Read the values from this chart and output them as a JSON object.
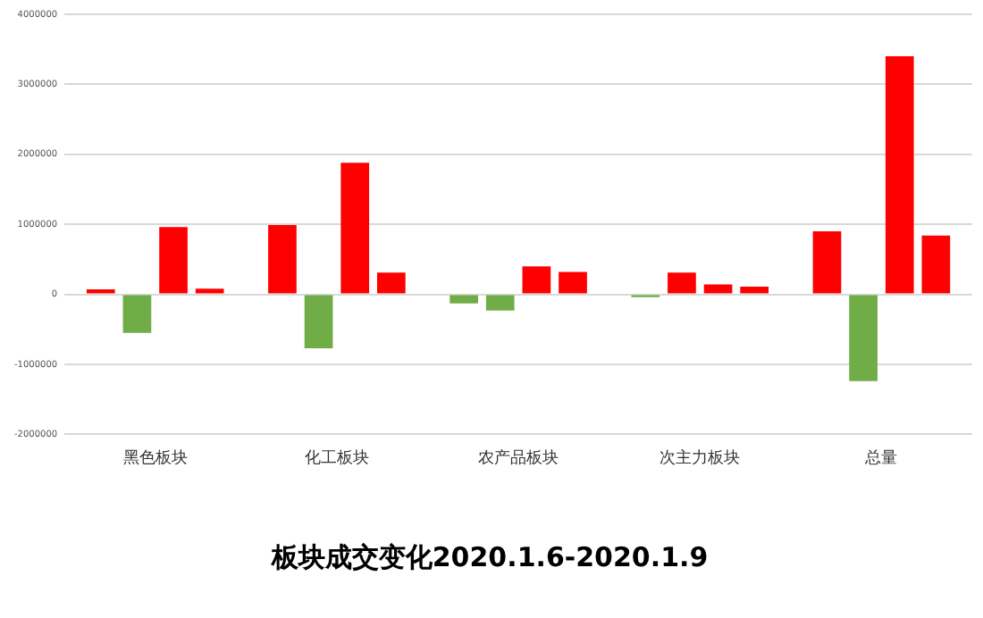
{
  "chart_data": {
    "type": "bar",
    "title": "板块成交变化2020.1.6-2020.1.9",
    "categories": [
      "黑色板块",
      "化工板块",
      "农产品板块",
      "次主力板块",
      "总量"
    ],
    "series": [
      {
        "values": [
          70000,
          990000,
          -130000,
          -40000,
          900000
        ],
        "colors": [
          "#ff0000",
          "#ff0000",
          "#70ad47",
          "#70ad47",
          "#ff0000"
        ]
      },
      {
        "values": [
          -550000,
          -770000,
          -230000,
          310000,
          -1240000
        ],
        "colors": [
          "#70ad47",
          "#70ad47",
          "#70ad47",
          "#ff0000",
          "#70ad47"
        ]
      },
      {
        "values": [
          960000,
          1880000,
          400000,
          140000,
          3400000
        ],
        "colors": [
          "#ff0000",
          "#ff0000",
          "#ff0000",
          "#ff0000",
          "#ff0000"
        ]
      },
      {
        "values": [
          80000,
          310000,
          320000,
          110000,
          840000
        ],
        "colors": [
          "#ff0000",
          "#ff0000",
          "#ff0000",
          "#ff0000",
          "#ff0000"
        ]
      }
    ],
    "ylim": [
      -2000000,
      4000000
    ],
    "yticks": [
      -2000000,
      -1000000,
      0,
      1000000,
      2000000,
      3000000,
      4000000
    ],
    "grid": "y",
    "legend": false
  }
}
